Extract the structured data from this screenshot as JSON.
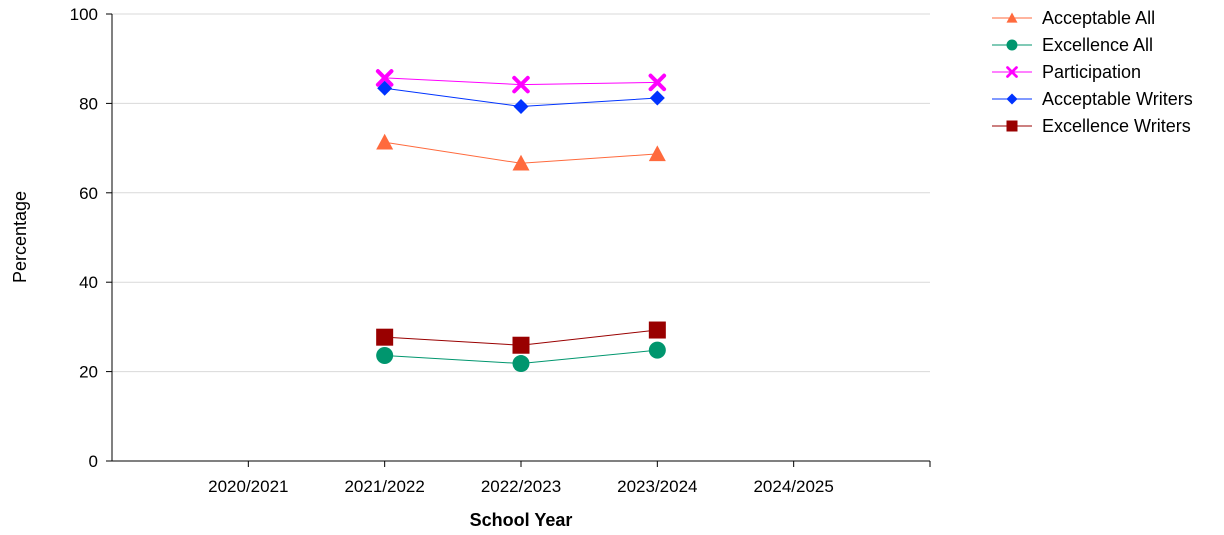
{
  "chart_data": {
    "type": "line",
    "xlabel": "School Year",
    "ylabel": "Percentage",
    "ylim": [
      0,
      100
    ],
    "yticks": [
      0,
      20,
      40,
      60,
      80,
      100
    ],
    "categories": [
      "2020/2021",
      "2021/2022",
      "2022/2023",
      "2023/2024",
      "2024/2025"
    ],
    "grid": "horizontal",
    "legend_position": "top-right",
    "series": [
      {
        "name": "Acceptable All",
        "color": "#ff6a3d",
        "marker": "triangle",
        "values": [
          null,
          71.3,
          66.6,
          68.7,
          null
        ]
      },
      {
        "name": "Excellence All",
        "color": "#00966e",
        "marker": "circle",
        "values": [
          null,
          23.6,
          21.8,
          24.8,
          null
        ]
      },
      {
        "name": "Participation",
        "color": "#ff00ff",
        "marker": "x",
        "values": [
          null,
          85.7,
          84.2,
          84.7,
          null
        ]
      },
      {
        "name": "Acceptable Writers",
        "color": "#0033ff",
        "marker": "diamond",
        "values": [
          null,
          83.4,
          79.3,
          81.2,
          null
        ]
      },
      {
        "name": "Excellence Writers",
        "color": "#990000",
        "marker": "square",
        "values": [
          null,
          27.7,
          25.9,
          29.3,
          null
        ]
      }
    ]
  }
}
